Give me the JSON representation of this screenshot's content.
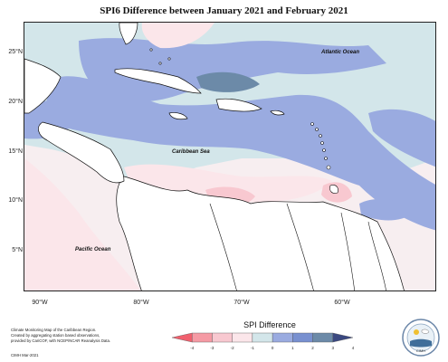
{
  "title": "SPI6 Difference between January 2021 and February 2021",
  "axes": {
    "lat_ticks": [
      "25°N",
      "20°N",
      "15°N",
      "10°N",
      "5°N"
    ],
    "lon_ticks": [
      "90°W",
      "80°W",
      "70°W",
      "60°W"
    ]
  },
  "labels": {
    "atlantic": "Atlantic Ocean",
    "caribbean": "Caribbean Sea",
    "pacific": "Pacific Ocean"
  },
  "credit": {
    "line1": "Climate Monitoring Map of the Caribbean Region.",
    "line2": "Created by aggregating station based observations,",
    "line3": "provided by CariCOF, with NCEP/NCAR Reanalysis Data.",
    "code": "CIMH Mar-2021"
  },
  "legend": {
    "title": "SPI Difference",
    "ticks": [
      "-4",
      "-3",
      "-2",
      "-1",
      "0",
      "1",
      "2",
      "3",
      "4"
    ],
    "colors": [
      "#f0606e",
      "#f59aa4",
      "#f8c8d0",
      "#fbe6ea",
      "#d3e6ea",
      "#9aabe0",
      "#7890d0",
      "#6c8aa8",
      "#3a4880"
    ]
  },
  "logo": {
    "text": "CIMH"
  }
}
